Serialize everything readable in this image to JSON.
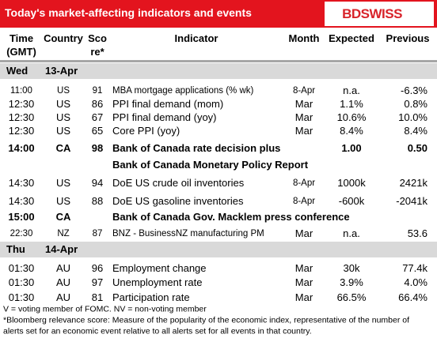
{
  "header": {
    "title": "Today's market-affecting indicators and events",
    "logo": "BDSWISS"
  },
  "columns": [
    [
      "Time",
      "(GMT)"
    ],
    [
      "Country"
    ],
    [
      "Sco",
      "re*"
    ],
    [
      "Indicator"
    ],
    [
      "Month"
    ],
    [
      "Expected"
    ],
    [
      "Previous"
    ]
  ],
  "days": [
    {
      "day": "Wed",
      "date": "13-Apr",
      "events": [
        {
          "time": "11:00",
          "country": "US",
          "score": "91",
          "indicator": "MBA mortgage applications (% wk)",
          "month": "8-Apr",
          "expected": "n.a.",
          "previous": "-6.3%",
          "small": true
        },
        {
          "time": "12:30",
          "country": "US",
          "score": "86",
          "indicator": "PPI final demand (mom)",
          "month": "Mar",
          "expected": "1.1%",
          "previous": "0.8%"
        },
        {
          "time": "12:30",
          "country": "US",
          "score": "67",
          "indicator": "PPI final demand (yoy)",
          "month": "Mar",
          "expected": "10.6%",
          "previous": "10.0%"
        },
        {
          "time": "12:30",
          "country": "US",
          "score": "65",
          "indicator": "Core PPI (yoy)",
          "month": "Mar",
          "expected": "8.4%",
          "previous": "8.4%"
        },
        {
          "time": "14:00",
          "country": "CA",
          "score": "98",
          "indicator": "Bank of Canada rate decision plus",
          "expected": "1.00",
          "previous": "0.50",
          "bold": true
        },
        {
          "indicator": "Bank of Canada Monetary Policy Report",
          "bold": true
        },
        {
          "time": "14:30",
          "country": "US",
          "score": "94",
          "indicator": "DoE US crude oil inventories",
          "month": "8-Apr",
          "expected": "1000k",
          "previous": "2421k"
        },
        {
          "time": "14:30",
          "country": "US",
          "score": "88",
          "indicator": "DoE US gasoline inventories",
          "month": "8-Apr",
          "expected": "-600k",
          "previous": "-2041k"
        },
        {
          "time": "15:00",
          "country": "CA",
          "indicator": "Bank of Canada Gov. Macklem press conference",
          "bold": true
        },
        {
          "time": "22:30",
          "country": "NZ",
          "score": "87",
          "indicator": "BNZ - BusinessNZ manufacturing PM",
          "month": "Mar",
          "expected": "n.a.",
          "previous": "53.6",
          "small": true
        }
      ]
    },
    {
      "day": "Thu",
      "date": "14-Apr",
      "events": [
        {
          "time": "01:30",
          "country": "AU",
          "score": "96",
          "indicator": "Employment change",
          "month": "Mar",
          "expected": "30k",
          "previous": "77.4k"
        },
        {
          "time": "01:30",
          "country": "AU",
          "score": "97",
          "indicator": "Unemployment rate",
          "month": "Mar",
          "expected": "3.9%",
          "previous": "4.0%"
        },
        {
          "time": "01:30",
          "country": "AU",
          "score": "81",
          "indicator": "Participation rate",
          "month": "Mar",
          "expected": "66.5%",
          "previous": "66.4%"
        }
      ]
    }
  ],
  "notes": [
    "V = voting member of FOMC. NV = non-voting member",
    "*Bloomberg relevance score:  Measure of the popularity of the economic index, representative of the number of",
    "alerts set for an economic event relative to all alerts set for all events in that country."
  ]
}
